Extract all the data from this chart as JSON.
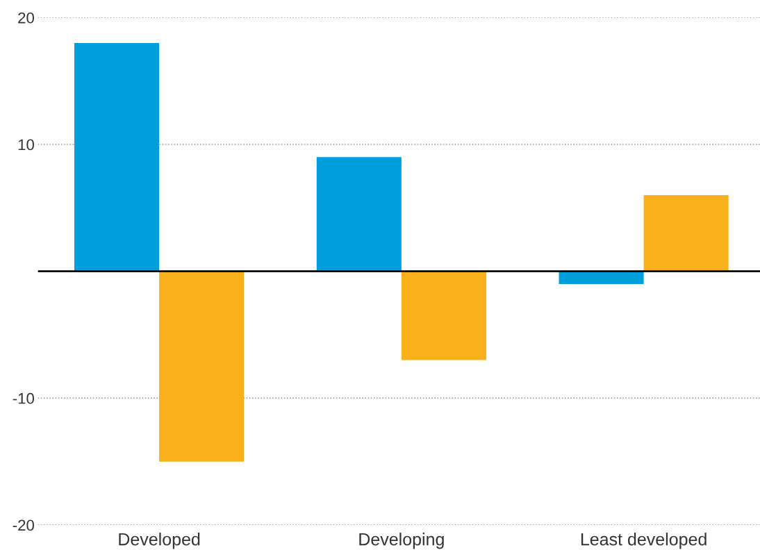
{
  "chart_data": {
    "type": "bar",
    "categories": [
      "Developed",
      "Developing",
      "Least developed"
    ],
    "series": [
      {
        "color": "#009edb",
        "values": [
          18,
          9,
          -1
        ]
      },
      {
        "color": "#f9b01a",
        "values": [
          -15,
          -7,
          6
        ]
      }
    ],
    "ylim": [
      -20,
      20
    ],
    "yticks": [
      -20,
      -10,
      10,
      20
    ],
    "grid": "y",
    "ref_lines": [
      {
        "axis": "y",
        "value": 0,
        "color": "#000000",
        "line_style": "solid"
      }
    ]
  }
}
